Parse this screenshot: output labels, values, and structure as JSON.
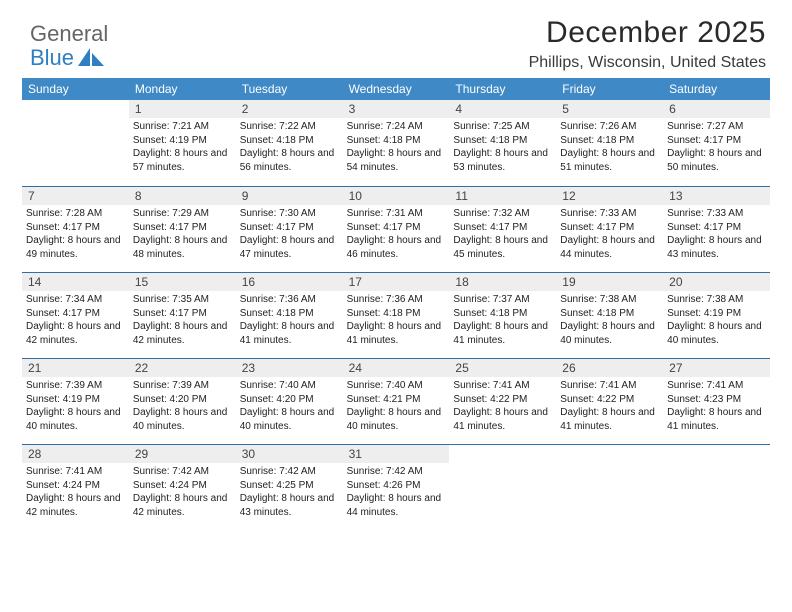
{
  "logo": {
    "top": "General",
    "bottom": "Blue"
  },
  "title": "December 2025",
  "subtitle": "Phillips, Wisconsin, United States",
  "colors": {
    "header_bg": "#3e89c6",
    "daynum_bg": "#eeeeee",
    "rule": "#2f6fa8",
    "logo_blue": "#2f7fc2"
  },
  "dow": [
    "Sunday",
    "Monday",
    "Tuesday",
    "Wednesday",
    "Thursday",
    "Friday",
    "Saturday"
  ],
  "weeks": [
    [
      null,
      {
        "n": "1",
        "sr": "7:21 AM",
        "ss": "4:19 PM",
        "dl": "8 hours and 57 minutes."
      },
      {
        "n": "2",
        "sr": "7:22 AM",
        "ss": "4:18 PM",
        "dl": "8 hours and 56 minutes."
      },
      {
        "n": "3",
        "sr": "7:24 AM",
        "ss": "4:18 PM",
        "dl": "8 hours and 54 minutes."
      },
      {
        "n": "4",
        "sr": "7:25 AM",
        "ss": "4:18 PM",
        "dl": "8 hours and 53 minutes."
      },
      {
        "n": "5",
        "sr": "7:26 AM",
        "ss": "4:18 PM",
        "dl": "8 hours and 51 minutes."
      },
      {
        "n": "6",
        "sr": "7:27 AM",
        "ss": "4:17 PM",
        "dl": "8 hours and 50 minutes."
      }
    ],
    [
      {
        "n": "7",
        "sr": "7:28 AM",
        "ss": "4:17 PM",
        "dl": "8 hours and 49 minutes."
      },
      {
        "n": "8",
        "sr": "7:29 AM",
        "ss": "4:17 PM",
        "dl": "8 hours and 48 minutes."
      },
      {
        "n": "9",
        "sr": "7:30 AM",
        "ss": "4:17 PM",
        "dl": "8 hours and 47 minutes."
      },
      {
        "n": "10",
        "sr": "7:31 AM",
        "ss": "4:17 PM",
        "dl": "8 hours and 46 minutes."
      },
      {
        "n": "11",
        "sr": "7:32 AM",
        "ss": "4:17 PM",
        "dl": "8 hours and 45 minutes."
      },
      {
        "n": "12",
        "sr": "7:33 AM",
        "ss": "4:17 PM",
        "dl": "8 hours and 44 minutes."
      },
      {
        "n": "13",
        "sr": "7:33 AM",
        "ss": "4:17 PM",
        "dl": "8 hours and 43 minutes."
      }
    ],
    [
      {
        "n": "14",
        "sr": "7:34 AM",
        "ss": "4:17 PM",
        "dl": "8 hours and 42 minutes."
      },
      {
        "n": "15",
        "sr": "7:35 AM",
        "ss": "4:17 PM",
        "dl": "8 hours and 42 minutes."
      },
      {
        "n": "16",
        "sr": "7:36 AM",
        "ss": "4:18 PM",
        "dl": "8 hours and 41 minutes."
      },
      {
        "n": "17",
        "sr": "7:36 AM",
        "ss": "4:18 PM",
        "dl": "8 hours and 41 minutes."
      },
      {
        "n": "18",
        "sr": "7:37 AM",
        "ss": "4:18 PM",
        "dl": "8 hours and 41 minutes."
      },
      {
        "n": "19",
        "sr": "7:38 AM",
        "ss": "4:18 PM",
        "dl": "8 hours and 40 minutes."
      },
      {
        "n": "20",
        "sr": "7:38 AM",
        "ss": "4:19 PM",
        "dl": "8 hours and 40 minutes."
      }
    ],
    [
      {
        "n": "21",
        "sr": "7:39 AM",
        "ss": "4:19 PM",
        "dl": "8 hours and 40 minutes."
      },
      {
        "n": "22",
        "sr": "7:39 AM",
        "ss": "4:20 PM",
        "dl": "8 hours and 40 minutes."
      },
      {
        "n": "23",
        "sr": "7:40 AM",
        "ss": "4:20 PM",
        "dl": "8 hours and 40 minutes."
      },
      {
        "n": "24",
        "sr": "7:40 AM",
        "ss": "4:21 PM",
        "dl": "8 hours and 40 minutes."
      },
      {
        "n": "25",
        "sr": "7:41 AM",
        "ss": "4:22 PM",
        "dl": "8 hours and 41 minutes."
      },
      {
        "n": "26",
        "sr": "7:41 AM",
        "ss": "4:22 PM",
        "dl": "8 hours and 41 minutes."
      },
      {
        "n": "27",
        "sr": "7:41 AM",
        "ss": "4:23 PM",
        "dl": "8 hours and 41 minutes."
      }
    ],
    [
      {
        "n": "28",
        "sr": "7:41 AM",
        "ss": "4:24 PM",
        "dl": "8 hours and 42 minutes."
      },
      {
        "n": "29",
        "sr": "7:42 AM",
        "ss": "4:24 PM",
        "dl": "8 hours and 42 minutes."
      },
      {
        "n": "30",
        "sr": "7:42 AM",
        "ss": "4:25 PM",
        "dl": "8 hours and 43 minutes."
      },
      {
        "n": "31",
        "sr": "7:42 AM",
        "ss": "4:26 PM",
        "dl": "8 hours and 44 minutes."
      },
      null,
      null,
      null
    ]
  ],
  "labels": {
    "sunrise": "Sunrise:",
    "sunset": "Sunset:",
    "daylight": "Daylight:"
  }
}
